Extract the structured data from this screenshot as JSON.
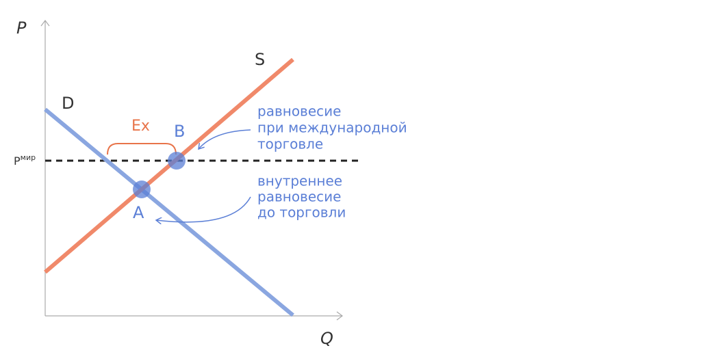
{
  "axes": {
    "y_label": "P",
    "x_label": "Q"
  },
  "curves": {
    "supply": "S",
    "demand": "D"
  },
  "world_price": {
    "main": "P",
    "sup": "мир"
  },
  "export_label": "Ex",
  "points": {
    "b": "B",
    "a": "A"
  },
  "annotations": [
    {
      "lines": [
        "равновесие",
        "при международной",
        "торговле"
      ]
    },
    {
      "lines": [
        "внутреннее",
        "равновесие",
        "до торговли"
      ]
    }
  ]
}
